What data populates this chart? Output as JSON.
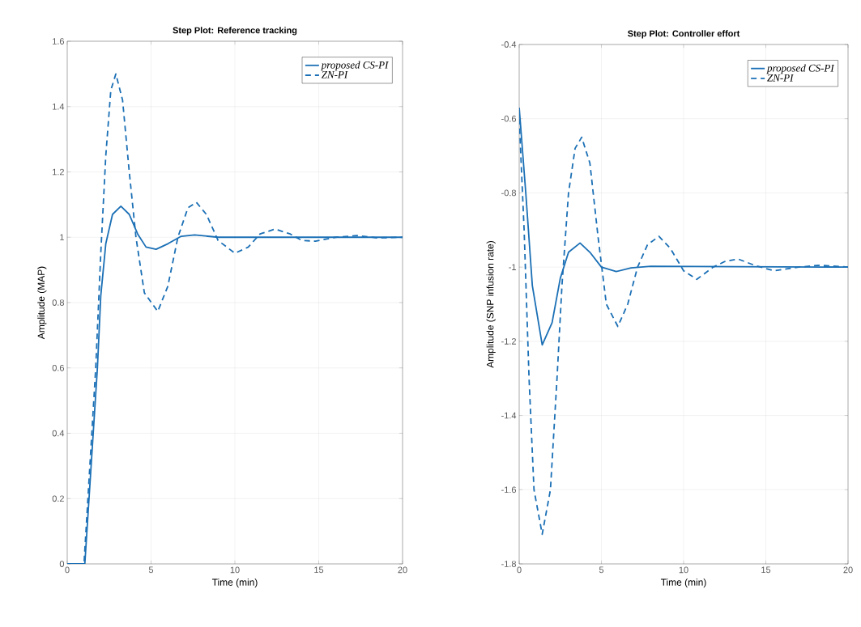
{
  "chart_data": [
    {
      "type": "line",
      "title": "Step Plot: Reference tracking",
      "xlabel": "Time (min)",
      "ylabel": "Amplitude (MAP)",
      "xlim": [
        0,
        20
      ],
      "ylim": [
        0,
        1.6
      ],
      "xticks": [
        0,
        5,
        10,
        15,
        20
      ],
      "yticks": [
        0,
        0.2,
        0.4,
        0.6,
        0.8,
        1,
        1.2,
        1.4,
        1.6
      ],
      "grid": true,
      "legend": "top right",
      "series": [
        {
          "name": "proposed CS-PI",
          "color": "#1a6fb5",
          "line_style": "solid",
          "x": [
            0,
            1.05,
            1.8,
            2.0,
            2.3,
            2.7,
            3.2,
            3.7,
            4.2,
            4.7,
            5.3,
            6,
            6.8,
            7.6,
            9,
            20
          ],
          "values": [
            0,
            0,
            0.6,
            0.82,
            0.98,
            1.07,
            1.095,
            1.07,
            1.01,
            0.97,
            0.963,
            0.98,
            1.003,
            1.007,
            1.0,
            1.0
          ]
        },
        {
          "name": "ZN-PI",
          "color": "#1a6fb5",
          "line_style": "dashed",
          "x": [
            0,
            1.0,
            1.7,
            2.0,
            2.3,
            2.6,
            2.9,
            3.3,
            3.7,
            4.1,
            4.6,
            5.4,
            6.0,
            6.6,
            7.2,
            7.7,
            8.3,
            9.0,
            10.0,
            10.8,
            11.5,
            12.4,
            13.3,
            14.0,
            14.8,
            16,
            17.3,
            18.5,
            20
          ],
          "values": [
            0,
            0,
            0.6,
            0.95,
            1.25,
            1.45,
            1.5,
            1.42,
            1.2,
            1.0,
            0.83,
            0.773,
            0.85,
            1.0,
            1.09,
            1.107,
            1.07,
            0.99,
            0.951,
            0.97,
            1.01,
            1.025,
            1.01,
            0.99,
            0.988,
            1.0,
            1.005,
            0.998,
            1.0
          ]
        }
      ]
    },
    {
      "type": "line",
      "title": "Step Plot: Controller effort",
      "xlabel": "Time (min)",
      "ylabel": "Amplitude (SNP infusion rate)",
      "xlim": [
        0,
        20
      ],
      "ylim": [
        -1.8,
        -0.4
      ],
      "xticks": [
        0,
        5,
        10,
        15,
        20
      ],
      "yticks": [
        -1.8,
        -1.6,
        -1.4,
        -1.2,
        -1,
        -0.8,
        -0.6,
        -0.4
      ],
      "grid": true,
      "legend": "top right",
      "series": [
        {
          "name": "proposed CS-PI",
          "color": "#1a6fb5",
          "line_style": "solid",
          "x": [
            0,
            0.4,
            0.8,
            1.4,
            2.0,
            2.5,
            3.0,
            3.7,
            4.3,
            5.0,
            5.9,
            6.8,
            8,
            20
          ],
          "values": [
            -0.57,
            -0.8,
            -1.05,
            -1.21,
            -1.15,
            -1.03,
            -0.96,
            -0.935,
            -0.96,
            -1.0,
            -1.012,
            -1.002,
            -0.998,
            -1.0
          ]
        },
        {
          "name": "ZN-PI",
          "color": "#1a6fb5",
          "line_style": "dashed",
          "x": [
            0,
            0.3,
            0.6,
            0.9,
            1.4,
            1.9,
            2.3,
            2.6,
            3.0,
            3.4,
            3.8,
            4.3,
            4.8,
            5.3,
            6.0,
            6.6,
            7.2,
            7.8,
            8.5,
            9.2,
            10,
            10.8,
            11.8,
            12.5,
            13.3,
            14.3,
            15.5,
            17,
            18.3,
            20
          ],
          "values": [
            -0.6,
            -0.9,
            -1.3,
            -1.6,
            -1.72,
            -1.6,
            -1.3,
            -1.05,
            -0.8,
            -0.68,
            -0.65,
            -0.72,
            -0.92,
            -1.1,
            -1.16,
            -1.1,
            -1.0,
            -0.94,
            -0.917,
            -0.95,
            -1.01,
            -1.033,
            -1.0,
            -0.985,
            -0.978,
            -0.995,
            -1.01,
            -1.0,
            -0.995,
            -1.0
          ]
        }
      ]
    }
  ]
}
